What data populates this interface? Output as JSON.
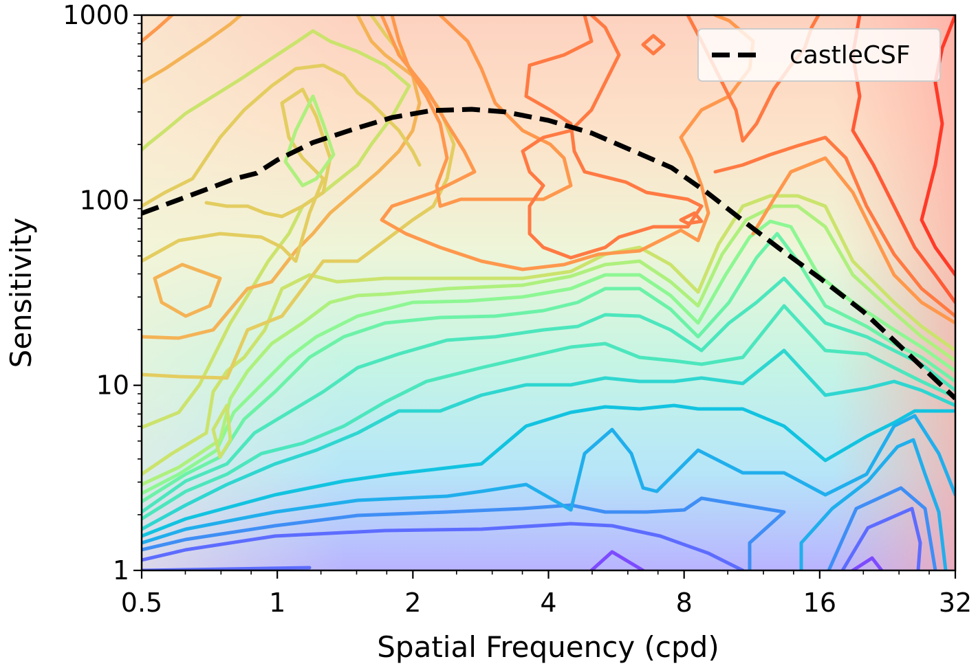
{
  "chart_data": {
    "type": "contour",
    "title": "",
    "xlabel": "Spatial Frequency (cpd)",
    "ylabel": "Sensitivity",
    "xscale": "log2",
    "yscale": "log10",
    "xlim": [
      0.5,
      32
    ],
    "ylim": [
      1,
      1000
    ],
    "xticks": [
      0.5,
      1,
      2,
      4,
      8,
      16,
      32
    ],
    "xtick_labels": [
      "0.5",
      "1",
      "2",
      "4",
      "8",
      "16",
      "32"
    ],
    "yticks": [
      1,
      10,
      100,
      1000
    ],
    "ytick_labels": [
      "1",
      "10",
      "100",
      "1000"
    ],
    "colormap": "rainbow",
    "legend_position": "top-right",
    "series": [
      {
        "name": "castleCSF",
        "style": "dashed",
        "color": "#000000",
        "x": [
          0.5,
          0.6,
          0.7,
          0.8,
          0.9,
          1.0,
          1.2,
          1.5,
          1.8,
          2.2,
          2.7,
          3.2,
          4.0,
          5.0,
          6.0,
          7.5,
          9.0,
          11.0,
          13.0,
          16.0,
          20.0,
          25.0,
          32.0
        ],
        "y": [
          85,
          100,
          115,
          130,
          140,
          165,
          205,
          245,
          280,
          305,
          310,
          300,
          270,
          230,
          190,
          150,
          110,
          75,
          55,
          38,
          25,
          15,
          8.5
        ]
      }
    ],
    "contour_levels": [
      "#7d4bff",
      "#5d6cff",
      "#3f8ef5",
      "#21aeec",
      "#12c3e0",
      "#2fd6d0",
      "#4ce6bd",
      "#6cf2a8",
      "#8df793",
      "#aef07d",
      "#cbe36c",
      "#e3cd60",
      "#f4b356",
      "#fe984d",
      "#ff7a43",
      "#ff5a36",
      "#ff3a28"
    ]
  }
}
